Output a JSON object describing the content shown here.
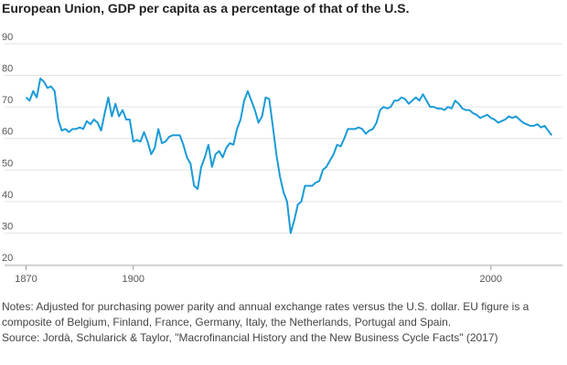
{
  "chart_data": {
    "type": "line",
    "title": "European Union, GDP per capita as a percentage of that of the U.S.",
    "notes": "Notes: Adjusted for purchasing power parity and annual exchange rates versus the U.S. dollar. EU figure is a composite of Belgium, Finland, France, Germany, Italy, the Netherlands, Portugal and Spain.",
    "source": "Source: Jordà, Schularick & Taylor, \"Macrofinancial History and the New Business Cycle Facts\" (2017)",
    "x": [
      1870,
      1871,
      1872,
      1873,
      1874,
      1875,
      1876,
      1877,
      1878,
      1879,
      1880,
      1881,
      1882,
      1883,
      1884,
      1885,
      1886,
      1887,
      1888,
      1889,
      1890,
      1891,
      1892,
      1893,
      1894,
      1895,
      1896,
      1897,
      1898,
      1899,
      1900,
      1901,
      1902,
      1903,
      1904,
      1905,
      1906,
      1907,
      1908,
      1909,
      1910,
      1911,
      1912,
      1913,
      1914,
      1915,
      1916,
      1917,
      1918,
      1919,
      1920,
      1921,
      1922,
      1923,
      1924,
      1925,
      1926,
      1927,
      1928,
      1929,
      1930,
      1931,
      1932,
      1933,
      1934,
      1935,
      1936,
      1937,
      1938,
      1939,
      1940,
      1941,
      1942,
      1943,
      1944,
      1945,
      1946,
      1947,
      1948,
      1949,
      1950,
      1951,
      1952,
      1953,
      1954,
      1955,
      1956,
      1957,
      1958,
      1959,
      1960,
      1961,
      1962,
      1963,
      1964,
      1965,
      1966,
      1967,
      1968,
      1969,
      1970,
      1971,
      1972,
      1973,
      1974,
      1975,
      1976,
      1977,
      1978,
      1979,
      1980,
      1981,
      1982,
      1983,
      1984,
      1985,
      1986,
      1987,
      1988,
      1989,
      1990,
      1991,
      1992,
      1993,
      1994,
      1995,
      1996,
      1997,
      1998,
      1999,
      2000,
      2001,
      2002,
      2003,
      2004,
      2005,
      2006,
      2007,
      2008,
      2009,
      2010,
      2011,
      2012,
      2013,
      2014,
      2015,
      2016,
      2017
    ],
    "series": [
      {
        "color": "#1a9bd7",
        "values": [
          73,
          72,
          75,
          73,
          79,
          78,
          76,
          76.5,
          75,
          66,
          62.5,
          63,
          62,
          63,
          63,
          63.5,
          63,
          65.5,
          64.5,
          66,
          65,
          62.5,
          68,
          73,
          67,
          71,
          67,
          69,
          66,
          66,
          59,
          59.5,
          59,
          62,
          59,
          55,
          57,
          63,
          58.5,
          59,
          60.5,
          61,
          61,
          61,
          58,
          54,
          52,
          45,
          44,
          51,
          54,
          58,
          51,
          55,
          56,
          54,
          57,
          58.5,
          58,
          63,
          66,
          72,
          75,
          72,
          69,
          65,
          67,
          73,
          72.5,
          64,
          55,
          48,
          43,
          40,
          30,
          34,
          39,
          40,
          45,
          45,
          45,
          46,
          46.5,
          50,
          51,
          53,
          55,
          58,
          57.5,
          60,
          63,
          63,
          63,
          63.5,
          63,
          61.5,
          62.5,
          63,
          65,
          69,
          70,
          69.5,
          70,
          72,
          72,
          73,
          72.5,
          71,
          72,
          73,
          72,
          74,
          72,
          70,
          70,
          69.5,
          69.5,
          69,
          70,
          69.5,
          72,
          71,
          69.5,
          69,
          69,
          68,
          67.5,
          66.5,
          67,
          67.5,
          66.5,
          66,
          65,
          65.5,
          66,
          67,
          66.5,
          67,
          66,
          65,
          64.5,
          64,
          64,
          64.5,
          63.5,
          64,
          62.5,
          61
        ]
      }
    ],
    "xlim": [
      1864,
      2020
    ],
    "xticks": [
      1870,
      1900,
      2000
    ],
    "ylim": [
      20,
      90
    ],
    "yticks": [
      20,
      30,
      40,
      50,
      60,
      70,
      80,
      90
    ],
    "grid": true
  }
}
